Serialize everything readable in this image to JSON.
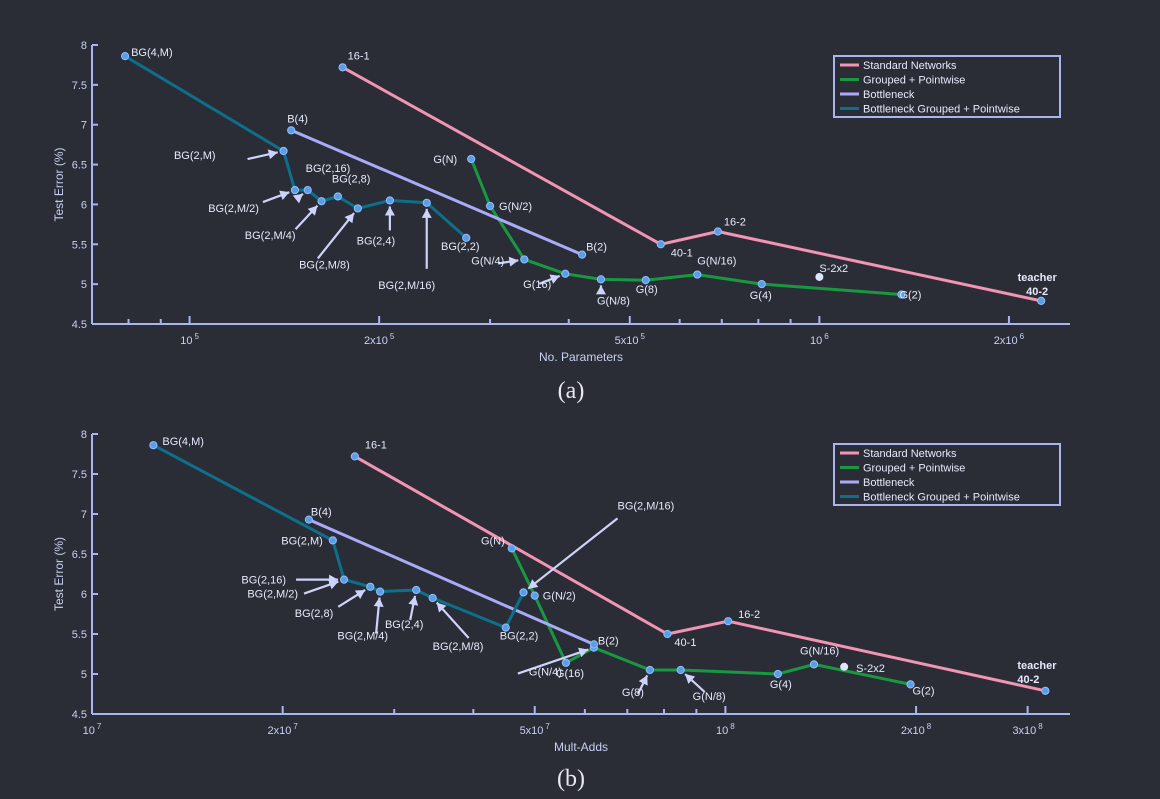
{
  "colors": {
    "standard": "#f294b4",
    "grouped": "#189840",
    "bottleneck": "#aaaaf8",
    "bg": "#0d6f8a",
    "marker": "#5b9ee6",
    "marker_edge": "#8fc0ff",
    "special_marker": "#dde4ff"
  },
  "legend_entries": [
    "Standard Networks",
    "Grouped + Pointwise",
    "Bottleneck",
    "Bottleneck Grouped + Pointwise"
  ],
  "chart_data": [
    {
      "type": "line",
      "caption": "(a)",
      "xlabel": "No. Parameters",
      "ylabel": "Test Error (%)",
      "xscale": "log",
      "xlim": [
        70000,
        2500000
      ],
      "ylim": [
        4.5,
        8
      ],
      "yticks": [
        "4.5",
        "5",
        "5.5",
        "6",
        "6.5",
        "7",
        "7.5",
        "8"
      ],
      "yticks_values": [
        4.5,
        5,
        5.5,
        6,
        6.5,
        7,
        7.5,
        8
      ],
      "xticks": [
        {
          "value": 100000,
          "base": "10",
          "exp": "5"
        },
        {
          "value": 200000,
          "base": "2x10",
          "exp": "5"
        },
        {
          "value": 500000,
          "base": "5x10",
          "exp": "5"
        },
        {
          "value": 1000000,
          "base": "10",
          "exp": "6"
        },
        {
          "value": 2000000,
          "base": "2x10",
          "exp": "6"
        }
      ],
      "minor_ticks": [
        80000,
        90000,
        300000,
        400000,
        600000,
        700000,
        800000,
        900000
      ],
      "legend_position": "top-right",
      "series": [
        {
          "name": "Standard Networks",
          "color_key": "standard",
          "points": [
            {
              "x": 175000,
              "y": 7.72,
              "label": "16-1"
            },
            {
              "x": 560000,
              "y": 5.5,
              "label": "40-1"
            },
            {
              "x": 690000,
              "y": 5.66,
              "label": "16-2"
            },
            {
              "x": 2250000,
              "y": 4.79,
              "label": "teacher\n40-2"
            }
          ]
        },
        {
          "name": "Grouped + Pointwise",
          "color_key": "grouped",
          "points": [
            {
              "x": 280000,
              "y": 6.57,
              "label": "G(N)"
            },
            {
              "x": 300000,
              "y": 5.98,
              "label": "G(N/2)"
            },
            {
              "x": 340000,
              "y": 5.31,
              "label": "G(N/4)"
            },
            {
              "x": 395000,
              "y": 5.13,
              "label": "G(16)"
            },
            {
              "x": 450000,
              "y": 5.06,
              "label": "G(N/8)"
            },
            {
              "x": 530000,
              "y": 5.05,
              "label": "G(8)"
            },
            {
              "x": 640000,
              "y": 5.12,
              "label": "G(N/16)"
            },
            {
              "x": 810000,
              "y": 5.0,
              "label": "G(4)"
            },
            {
              "x": 1350000,
              "y": 4.87,
              "label": "G(2)"
            }
          ]
        },
        {
          "name": "Bottleneck",
          "color_key": "bottleneck",
          "points": [
            {
              "x": 145000,
              "y": 6.93,
              "label": "B(4)"
            },
            {
              "x": 420000,
              "y": 5.37,
              "label": "B(2)"
            }
          ]
        },
        {
          "name": "Bottleneck Grouped + Pointwise",
          "color_key": "bg",
          "points": [
            {
              "x": 79000,
              "y": 7.86,
              "label": "BG(4,M)"
            },
            {
              "x": 141000,
              "y": 6.67,
              "label": "BG(2,M)"
            },
            {
              "x": 147000,
              "y": 6.18,
              "label": "BG(2,M/2)"
            },
            {
              "x": 154000,
              "y": 6.18,
              "label": "BG(2,16)"
            },
            {
              "x": 162000,
              "y": 6.04,
              "label": "BG(2,M/4)"
            },
            {
              "x": 172000,
              "y": 6.1,
              "label": "BG(2,8)"
            },
            {
              "x": 185000,
              "y": 5.95,
              "label": "BG(2,M/8)"
            },
            {
              "x": 208000,
              "y": 6.05,
              "label": "BG(2,4)"
            },
            {
              "x": 238000,
              "y": 6.02,
              "label": "BG(2,M/16)"
            },
            {
              "x": 275000,
              "y": 5.58,
              "label": "BG(2,2)"
            }
          ]
        }
      ],
      "extra_points": [
        {
          "x": 1000000,
          "y": 5.09,
          "label": "S-2x2"
        }
      ]
    },
    {
      "type": "line",
      "caption": "(b)",
      "xlabel": "Mult-Adds",
      "ylabel": "Test Error (%)",
      "xscale": "log",
      "xlim": [
        10000000,
        350000000
      ],
      "ylim": [
        4.5,
        8
      ],
      "yticks": [
        "4.5",
        "5",
        "5.5",
        "6",
        "6.5",
        "7",
        "7.5",
        "8"
      ],
      "yticks_values": [
        4.5,
        5,
        5.5,
        6,
        6.5,
        7,
        7.5,
        8
      ],
      "xticks": [
        {
          "value": 10000000,
          "base": "10",
          "exp": "7"
        },
        {
          "value": 20000000,
          "base": "2x10",
          "exp": "7"
        },
        {
          "value": 50000000,
          "base": "5x10",
          "exp": "7"
        },
        {
          "value": 100000000,
          "base": "10",
          "exp": "8"
        },
        {
          "value": 200000000,
          "base": "2x10",
          "exp": "8"
        },
        {
          "value": 300000000,
          "base": "3x10",
          "exp": "8"
        }
      ],
      "minor_ticks": [
        30000000,
        40000000,
        60000000,
        70000000,
        80000000,
        90000000
      ],
      "legend_position": "top-right",
      "series": [
        {
          "name": "Standard Networks",
          "color_key": "standard",
          "points": [
            {
              "x": 26000000,
              "y": 7.72,
              "label": "16-1"
            },
            {
              "x": 81000000,
              "y": 5.5,
              "label": "40-1"
            },
            {
              "x": 101000000,
              "y": 5.66,
              "label": "16-2"
            },
            {
              "x": 320000000,
              "y": 4.79,
              "label": "teacher\n40-2"
            }
          ]
        },
        {
          "name": "Grouped + Pointwise",
          "color_key": "grouped",
          "points": [
            {
              "x": 46000000,
              "y": 6.57,
              "label": "G(N)"
            },
            {
              "x": 50000000,
              "y": 5.98,
              "label": "G(N/2)"
            },
            {
              "x": 56000000,
              "y": 5.14,
              "label": "G(16)"
            },
            {
              "x": 62000000,
              "y": 5.33,
              "label": "G(N/4)"
            },
            {
              "x": 76000000,
              "y": 5.05,
              "label": "G(8)"
            },
            {
              "x": 85000000,
              "y": 5.05,
              "label": "G(N/8)"
            },
            {
              "x": 121000000,
              "y": 5.0,
              "label": "G(4)"
            },
            {
              "x": 138000000,
              "y": 5.12,
              "label": "G(N/16)"
            },
            {
              "x": 196000000,
              "y": 4.87,
              "label": "G(2)"
            }
          ]
        },
        {
          "name": "Bottleneck",
          "color_key": "bottleneck",
          "points": [
            {
              "x": 22000000,
              "y": 6.93,
              "label": "B(4)"
            },
            {
              "x": 62000000,
              "y": 5.37,
              "label": "B(2)"
            }
          ]
        },
        {
          "name": "Bottleneck Grouped + Pointwise",
          "color_key": "bg",
          "points": [
            {
              "x": 12500000,
              "y": 7.86,
              "label": "BG(4,M)"
            },
            {
              "x": 24000000,
              "y": 6.67,
              "label": "BG(2,M)"
            },
            {
              "x": 25000000,
              "y": 6.18,
              "label": "BG(2,16)"
            },
            {
              "x": 27500000,
              "y": 6.09,
              "label": "BG(2,8)"
            },
            {
              "x": 28500000,
              "y": 6.03,
              "label": "BG(2,M/4)"
            },
            {
              "x": 32500000,
              "y": 6.05,
              "label": "BG(2,4)"
            },
            {
              "x": 34500000,
              "y": 5.95,
              "label": "BG(2,M/8)"
            },
            {
              "x": 45000000,
              "y": 5.58,
              "label": "BG(2,2)"
            },
            {
              "x": 48000000,
              "y": 6.02,
              "label": "BG(2,M/16)"
            }
          ]
        }
      ],
      "extra_points": [
        {
          "x": 154000000,
          "y": 5.09,
          "label": "S-2x2"
        }
      ],
      "unordered_label_note": "BG(2,M/2) label only",
      "label_only": [
        "BG(2,M/2)"
      ]
    }
  ]
}
